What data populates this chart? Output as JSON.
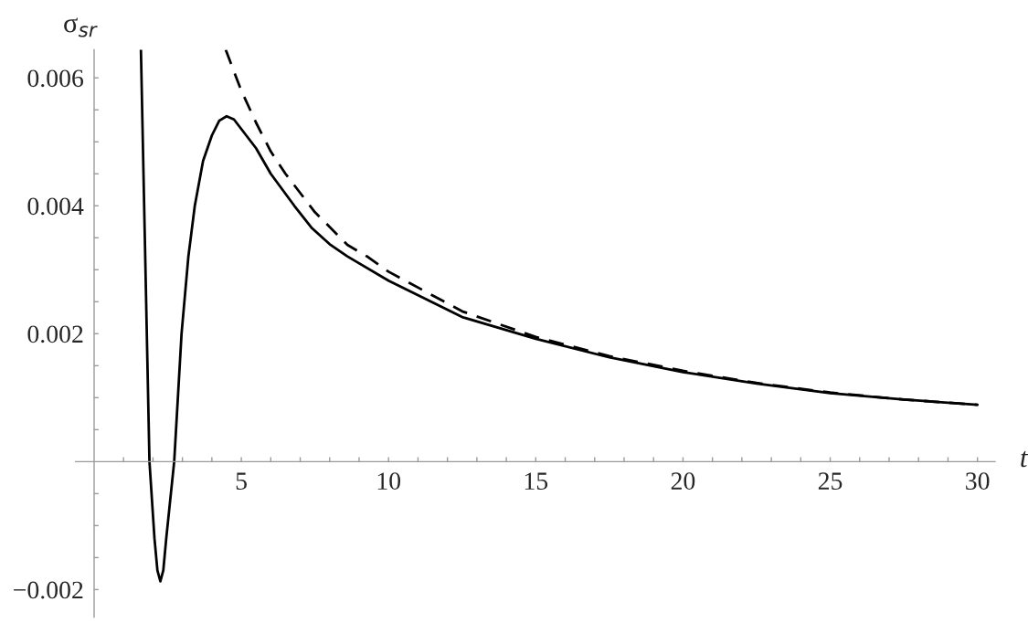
{
  "chart_data": {
    "type": "line",
    "xlabel": "t",
    "ylabel": "σ$_{sr}$",
    "xlim": [
      -0.63,
      30.6
    ],
    "ylim": [
      -0.00243,
      0.00644
    ],
    "xticks": [
      {
        "value": 1,
        "label": null
      },
      {
        "value": 2,
        "label": null
      },
      {
        "value": 3,
        "label": null
      },
      {
        "value": 4,
        "label": null
      },
      5,
      {
        "value": 6,
        "label": null
      },
      {
        "value": 7,
        "label": null
      },
      {
        "value": 8,
        "label": null
      },
      {
        "value": 9,
        "label": null
      },
      10,
      {
        "value": 11,
        "label": null
      },
      {
        "value": 12,
        "label": null
      },
      {
        "value": 13,
        "label": null
      },
      {
        "value": 14,
        "label": null
      },
      15,
      {
        "value": 16,
        "label": null
      },
      {
        "value": 17,
        "label": null
      },
      {
        "value": 18,
        "label": null
      },
      {
        "value": 19,
        "label": null
      },
      20,
      {
        "value": 21,
        "label": null
      },
      {
        "value": 22,
        "label": null
      },
      {
        "value": 23,
        "label": null
      },
      {
        "value": 24,
        "label": null
      },
      25,
      {
        "value": 26,
        "label": null
      },
      {
        "value": 27,
        "label": null
      },
      {
        "value": 28,
        "label": null
      },
      {
        "value": 29,
        "label": null
      },
      30
    ],
    "yticks": [
      {
        "value": -0.002,
        "label": "−0.002"
      },
      {
        "value": -0.0015,
        "label": null
      },
      {
        "value": -0.001,
        "label": null
      },
      {
        "value": -0.0005,
        "label": null
      },
      {
        "value": 0.0005,
        "label": null
      },
      {
        "value": 0.001,
        "label": null
      },
      {
        "value": 0.0015,
        "label": null
      },
      {
        "value": 0.002,
        "label": "0.002"
      },
      {
        "value": 0.0025,
        "label": null
      },
      {
        "value": 0.003,
        "label": null
      },
      {
        "value": 0.0035,
        "label": null
      },
      {
        "value": 0.004,
        "label": "0.004"
      },
      {
        "value": 0.0045,
        "label": null
      },
      {
        "value": 0.005,
        "label": null
      },
      {
        "value": 0.0055,
        "label": null
      },
      {
        "value": 0.006,
        "label": "0.006"
      }
    ],
    "grid": false,
    "legend": false,
    "marker": "none",
    "series": [
      {
        "color": "#000000",
        "line_style": "solid",
        "x": [
          1.59,
          1.88,
          2.05,
          2.15,
          2.25,
          2.35,
          2.45,
          2.72,
          2.97,
          3.2,
          3.42,
          3.7,
          4.0,
          4.25,
          4.5,
          4.75,
          5.0,
          5.5,
          6.0,
          6.8,
          7.4,
          8.0,
          8.6,
          10,
          12.5,
          15,
          17.5,
          20,
          22.5,
          25,
          27.5,
          30
        ],
        "values": [
          0.00644,
          0,
          -0.0012,
          -0.0017,
          -0.00187,
          -0.0017,
          -0.0012,
          0,
          0.002,
          0.0032,
          0.004,
          0.0047,
          0.0051,
          0.00533,
          0.0054,
          0.00535,
          0.0052,
          0.0049,
          0.0045,
          0.004,
          0.00365,
          0.0034,
          0.00321,
          0.00283,
          0.00226,
          0.00192,
          0.00163,
          0.0014,
          0.00122,
          0.00107,
          0.00097,
          0.00089
        ]
      },
      {
        "color": "#000000",
        "line_style": "dashed",
        "x": [
          4.47,
          4.75,
          5,
          5.5,
          6,
          6.5,
          7,
          7.5,
          8.6,
          9.3,
          10,
          12.5,
          15,
          17.5,
          20,
          22.5,
          25,
          27.5,
          30
        ],
        "values": [
          0.00644,
          0.0061,
          0.0058,
          0.0053,
          0.00485,
          0.0045,
          0.0042,
          0.0039,
          0.00339,
          0.0032,
          0.00297,
          0.00235,
          0.00195,
          0.00165,
          0.00142,
          0.00123,
          0.00108,
          0.00097,
          0.00089
        ]
      }
    ]
  }
}
